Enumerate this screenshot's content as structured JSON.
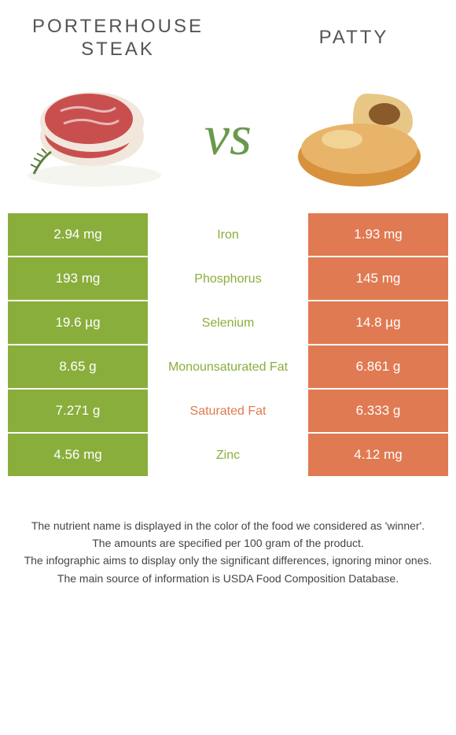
{
  "foods": {
    "left": {
      "name": "Porterhouse steak",
      "color": "#8aae3c"
    },
    "right": {
      "name": "Patty",
      "color": "#e07a52"
    }
  },
  "vs_text": "vs",
  "nutrients": [
    {
      "label": "Iron",
      "left": "2.94 mg",
      "right": "1.93 mg",
      "winner": "left"
    },
    {
      "label": "Phosphorus",
      "left": "193 mg",
      "right": "145 mg",
      "winner": "left"
    },
    {
      "label": "Selenium",
      "left": "19.6 µg",
      "right": "14.8 µg",
      "winner": "left"
    },
    {
      "label": "Monounsaturated Fat",
      "left": "8.65 g",
      "right": "6.861 g",
      "winner": "left"
    },
    {
      "label": "Saturated Fat",
      "left": "7.271 g",
      "right": "6.333 g",
      "winner": "right"
    },
    {
      "label": "Zinc",
      "left": "4.56 mg",
      "right": "4.12 mg",
      "winner": "left"
    }
  ],
  "footer": {
    "line1": "The nutrient name is displayed in the color of the food we considered as 'winner'.",
    "line2": "The amounts are specified per 100 gram of the product.",
    "line3": "The infographic aims to display only the significant differences, ignoring minor ones.",
    "line4": "The main source of information is USDA Food Composition Database."
  },
  "svg": {
    "steak": {
      "meat_fill": "#c94f4f",
      "fat_fill": "#f2e7dc",
      "marble": "#e8b8b8",
      "herb": "#5e7d3a",
      "plate": "#f5f5f0"
    },
    "patty": {
      "bun_fill": "#d8923e",
      "bun_top": "#e8b46a",
      "bun_shine": "#f5dfa8",
      "filling": "#8b5a2b",
      "back_bun": "#e8c786"
    }
  }
}
